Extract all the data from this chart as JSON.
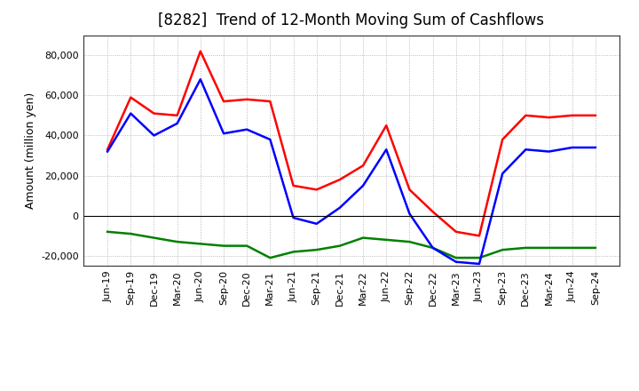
{
  "title": "[8282]  Trend of 12-Month Moving Sum of Cashflows",
  "ylabel": "Amount (million yen)",
  "background_color": "#ffffff",
  "plot_bg_color": "#ffffff",
  "grid_color": "#aaaaaa",
  "xlabels": [
    "Jun-19",
    "Sep-19",
    "Dec-19",
    "Mar-20",
    "Jun-20",
    "Sep-20",
    "Dec-20",
    "Mar-21",
    "Jun-21",
    "Sep-21",
    "Dec-21",
    "Mar-22",
    "Jun-22",
    "Sep-22",
    "Dec-22",
    "Mar-23",
    "Jun-23",
    "Sep-23",
    "Dec-23",
    "Mar-24",
    "Jun-24",
    "Sep-24"
  ],
  "operating": [
    33000,
    59000,
    51000,
    50000,
    82000,
    57000,
    58000,
    57000,
    15000,
    13000,
    18000,
    25000,
    45000,
    13000,
    2000,
    -8000,
    -10000,
    38000,
    50000,
    49000,
    50000,
    50000
  ],
  "investing": [
    -8000,
    -9000,
    -11000,
    -13000,
    -14000,
    -15000,
    -15000,
    -21000,
    -18000,
    -17000,
    -15000,
    -11000,
    -12000,
    -13000,
    -16000,
    -21000,
    -21000,
    -17000,
    -16000,
    -16000,
    -16000,
    -16000
  ],
  "free": [
    32000,
    51000,
    40000,
    46000,
    68000,
    41000,
    43000,
    38000,
    -1000,
    -4000,
    4000,
    15000,
    33000,
    1000,
    -16000,
    -23000,
    -24000,
    21000,
    33000,
    32000,
    34000,
    34000
  ],
  "ylim": [
    -25000,
    90000
  ],
  "yticks": [
    -20000,
    0,
    20000,
    40000,
    60000,
    80000
  ],
  "operating_color": "#ff0000",
  "investing_color": "#008000",
  "free_color": "#0000ff",
  "line_width": 1.8,
  "title_fontsize": 12,
  "tick_fontsize": 8,
  "ylabel_fontsize": 9,
  "legend_fontsize": 9
}
